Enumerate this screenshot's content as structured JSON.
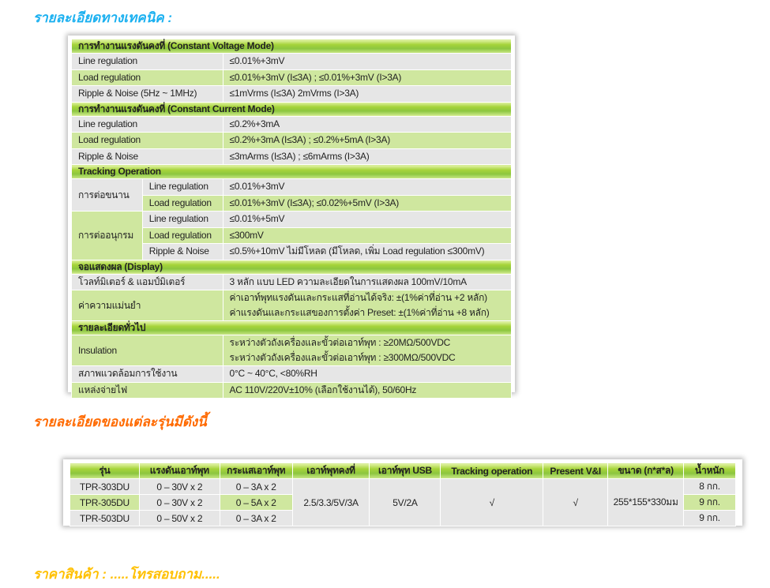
{
  "headings": {
    "technical": "รายละเอียดทางเทคนิค :",
    "models": "รายละเอียดของแต่ละรุ่นมีดังนี้",
    "price": "ราคาสินค้า : .....โทรสอบถาม....."
  },
  "colors": {
    "blue_heading": "#1ab0f0",
    "orange_heading": "#ff6a00",
    "yellow_heading": "#ffc000",
    "row_green": "#cfe79f",
    "row_gray": "#e6e6e6",
    "header_green": "#8cc63f"
  },
  "spec_sections": [
    {
      "title": "การทำงานแรงดันคงที่ (Constant Voltage Mode)",
      "rows": [
        {
          "label": "Line regulation",
          "value": [
            "≤0.01%+3mV"
          ],
          "shade": "gray"
        },
        {
          "label": "Load regulation",
          "value": [
            "≤0.01%+3mV (I≤3A) ;  ≤0.01%+3mV (I>3A)"
          ],
          "shade": "green"
        },
        {
          "label": "Ripple & Noise (5Hz ~ 1MHz)",
          "value": [
            "≤1mVrms (I≤3A) 2mVrms (I>3A)"
          ],
          "shade": "gray"
        }
      ]
    },
    {
      "title": "การทำงานแรงดันคงที่ (Constant Current Mode)",
      "rows": [
        {
          "label": "Line regulation",
          "value": [
            "≤0.2%+3mA"
          ],
          "shade": "gray"
        },
        {
          "label": "Load regulation",
          "value": [
            "≤0.2%+3mA (I≤3A) ;  ≤0.2%+5mA (I>3A)"
          ],
          "shade": "green"
        },
        {
          "label": "Ripple & Noise",
          "value": [
            "≤3mArms (I≤3A) ; ≤6mArms (I>3A)"
          ],
          "shade": "gray"
        }
      ]
    },
    {
      "title": "Tracking Operation",
      "groups": [
        {
          "label": "การต่อขนาน",
          "shade": "gray",
          "items": [
            {
              "label": "Line regulation",
              "value": "≤0.01%+3mV",
              "shade": "gray"
            },
            {
              "label": "Load regulation",
              "value": "≤0.01%+3mV (I≤3A);  ≤0.02%+5mV (I>3A)",
              "shade": "green"
            }
          ]
        },
        {
          "label": "การต่ออนุกรม",
          "shade": "green",
          "items": [
            {
              "label": "Line regulation",
              "value": "≤0.01%+5mV",
              "shade": "gray"
            },
            {
              "label": "Load regulation",
              "value": "≤300mV",
              "shade": "green"
            },
            {
              "label": "Ripple & Noise",
              "value": "≤0.5%+10mV ไม่มีโหลด (มีโหลด, เพิ่ม Load regulation ≤300mV)",
              "shade": "gray"
            }
          ]
        }
      ]
    },
    {
      "title": "จอแสดงผล (Display)",
      "rows": [
        {
          "label": "โวลท์มิเตอร์ & แอมป์มิเตอร์",
          "value": [
            "3 หลัก แบบ LED ความละเอียดในการแสดงผล 100mV/10mA"
          ],
          "shade": "gray"
        },
        {
          "label": "ค่าความแม่นยำ",
          "value": [
            "ค่าเอาท์พุทแรงดันและกระแสที่อ่านได้จริง: ±(1%ค่าที่อ่าน +2 หลัก)",
            "ค่าแรงดันและกระแสของการตั้งค่า Preset: ±(1%ค่าที่อ่าน +8 หลัก)"
          ],
          "shade": "green"
        }
      ]
    },
    {
      "title": "รายละเอียดทั่วไป",
      "rows": [
        {
          "label": "Insulation",
          "value": [
            "ระหว่างตัวถังเครื่องและขั้วต่อเอาท์พุท : ≥20MΩ/500VDC",
            "ระหว่างตัวถังเครื่องและขั้วต่อเอาท์พุท : ≥300MΩ/500VDC"
          ],
          "shade": "green"
        },
        {
          "label": "สภาพแวดล้อมการใช้งาน",
          "value": [
            "0°C ~ 40°C, <80%RH"
          ],
          "shade": "gray"
        },
        {
          "label": "แหล่งจ่ายไฟ",
          "value": [
            "AC 110V/220V±10% (เลือกใช้งานได้), 50/60Hz"
          ],
          "shade": "green"
        }
      ]
    }
  ],
  "models": {
    "columns": [
      "รุ่น",
      "แรงดันเอาท์พุท",
      "กระแสเอาท์พุท",
      "เอาท์พุทคงที่",
      "เอาท์พุท USB",
      "Tracking operation",
      "Present V&I",
      "ขนาด (ก*ส*ล)",
      "น้ำหนัก"
    ],
    "rows": [
      {
        "model": "TPR-303DU",
        "voltage": "0 – 30V x 2",
        "current": "0 – 3A x 2",
        "weight": "8 กก.",
        "shade": "gray",
        "current_shade": "gray"
      },
      {
        "model": "TPR-305DU",
        "voltage": "0 – 30V x 2",
        "current": "0 – 5A x 2",
        "weight": "9 กก.",
        "shade": "green",
        "current_shade": "green"
      },
      {
        "model": "TPR-503DU",
        "voltage": "0 – 50V x 2",
        "current": "0 – 3A x 2",
        "weight": "9 กก.",
        "shade": "gray",
        "current_shade": "gray"
      }
    ],
    "shared": {
      "fixed_output": "2.5/3.3/5V/3A",
      "usb_output": "5V/2A",
      "tracking": "√",
      "preset": "√",
      "dimensions": "255*155*330มม"
    }
  }
}
